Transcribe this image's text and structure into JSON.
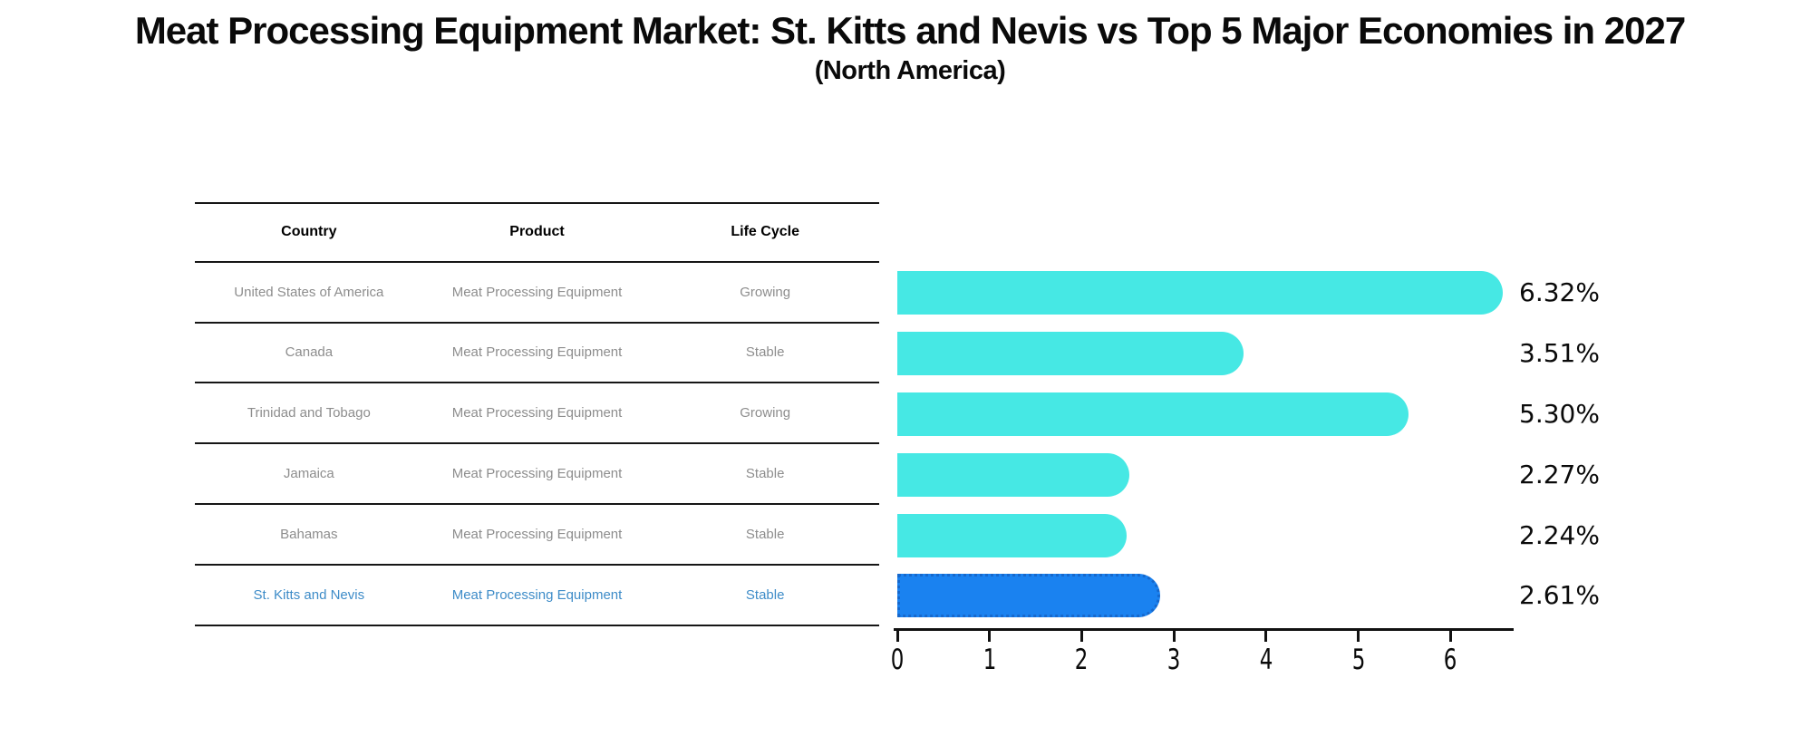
{
  "title": "Meat Processing Equipment Market: St. Kitts and Nevis vs Top 5 Major Economies in 2027",
  "subtitle": "(North America)",
  "table": {
    "headers": {
      "country": "Country",
      "product": "Product",
      "life_cycle": "Life Cycle"
    },
    "rows": [
      {
        "country": "United States of America",
        "product": "Meat Processing Equipment",
        "life_cycle": "Growing"
      },
      {
        "country": "Canada",
        "product": "Meat Processing Equipment",
        "life_cycle": "Stable"
      },
      {
        "country": "Trinidad and Tobago",
        "product": "Meat Processing Equipment",
        "life_cycle": "Growing"
      },
      {
        "country": "Jamaica",
        "product": "Meat Processing Equipment",
        "life_cycle": "Stable"
      },
      {
        "country": "Bahamas",
        "product": "Meat Processing Equipment",
        "life_cycle": "Stable"
      },
      {
        "country": "St. Kitts and Nevis",
        "product": "Meat Processing Equipment",
        "life_cycle": "Stable"
      }
    ],
    "highlight_row_index": 5
  },
  "chart_data": {
    "type": "bar",
    "orientation": "horizontal",
    "title": "Meat Processing Equipment Market: St. Kitts and Nevis vs Top 5 Major Economies in 2027 (North America)",
    "categories": [
      "United States of America",
      "Canada",
      "Trinidad and Tobago",
      "Jamaica",
      "Bahamas",
      "St. Kitts and Nevis"
    ],
    "values": [
      6.32,
      3.51,
      5.3,
      2.27,
      2.24,
      2.61
    ],
    "value_labels": [
      "6.32%",
      "3.51%",
      "5.30%",
      "2.27%",
      "2.24%",
      "2.61%"
    ],
    "xticks": [
      "0",
      "1",
      "2",
      "3",
      "4",
      "5",
      "6"
    ],
    "xlim": [
      0,
      6.65
    ],
    "grid": false,
    "legend": false,
    "bar_color": "#46E8E4",
    "highlight_bar_color": "#1A82F0",
    "highlight_border_color": "#1668CC",
    "highlight_index": 5
  },
  "colors": {
    "background": "#FFFFFF",
    "rule": "#161616",
    "table_text_gray": "#8D8D8D",
    "highlight_text_blue": "#3E8CC8",
    "label_black": "#0A0A0A"
  }
}
